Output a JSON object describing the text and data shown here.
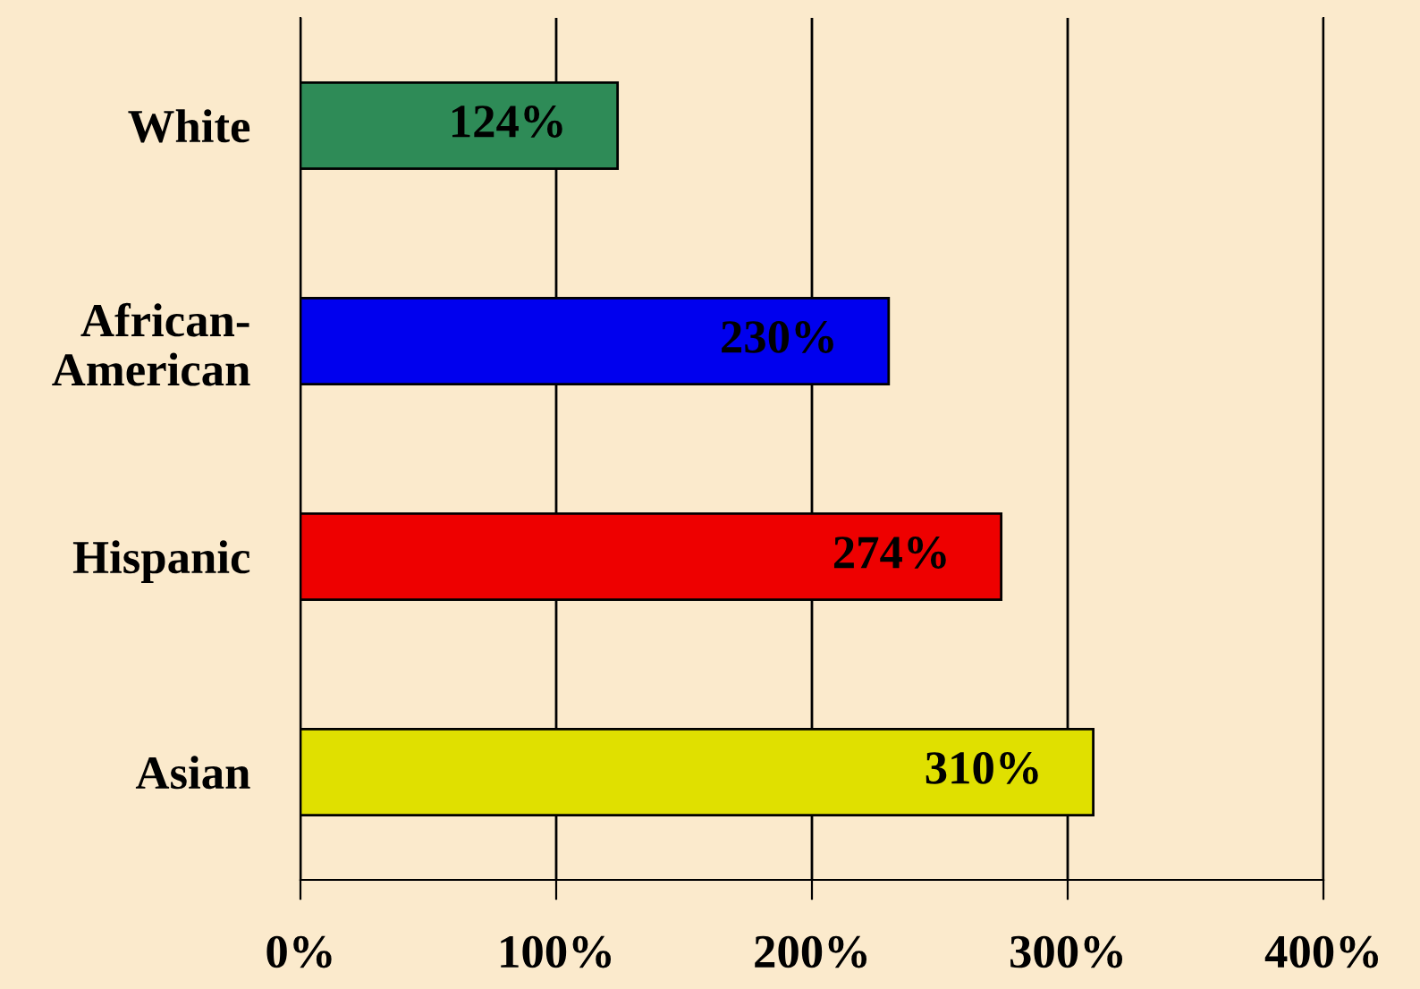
{
  "chart_data": {
    "type": "bar",
    "orientation": "horizontal",
    "categories": [
      "White",
      "African-\nAmerican",
      "Hispanic",
      "Asian"
    ],
    "values": [
      124,
      230,
      274,
      310
    ],
    "colors": [
      "#2e8b57",
      "#0000ee",
      "#ee0000",
      "#e0e000"
    ],
    "value_labels": [
      "124%",
      "230%",
      "274%",
      "310%"
    ],
    "xlim": [
      0,
      400
    ],
    "xticks": [
      {
        "value": 0,
        "label": "0%"
      },
      {
        "value": 100,
        "label": "100%"
      },
      {
        "value": 200,
        "label": "200%"
      },
      {
        "value": 300,
        "label": "300%"
      },
      {
        "value": 400,
        "label": "400%"
      }
    ],
    "grid": "x",
    "legend": false
  }
}
